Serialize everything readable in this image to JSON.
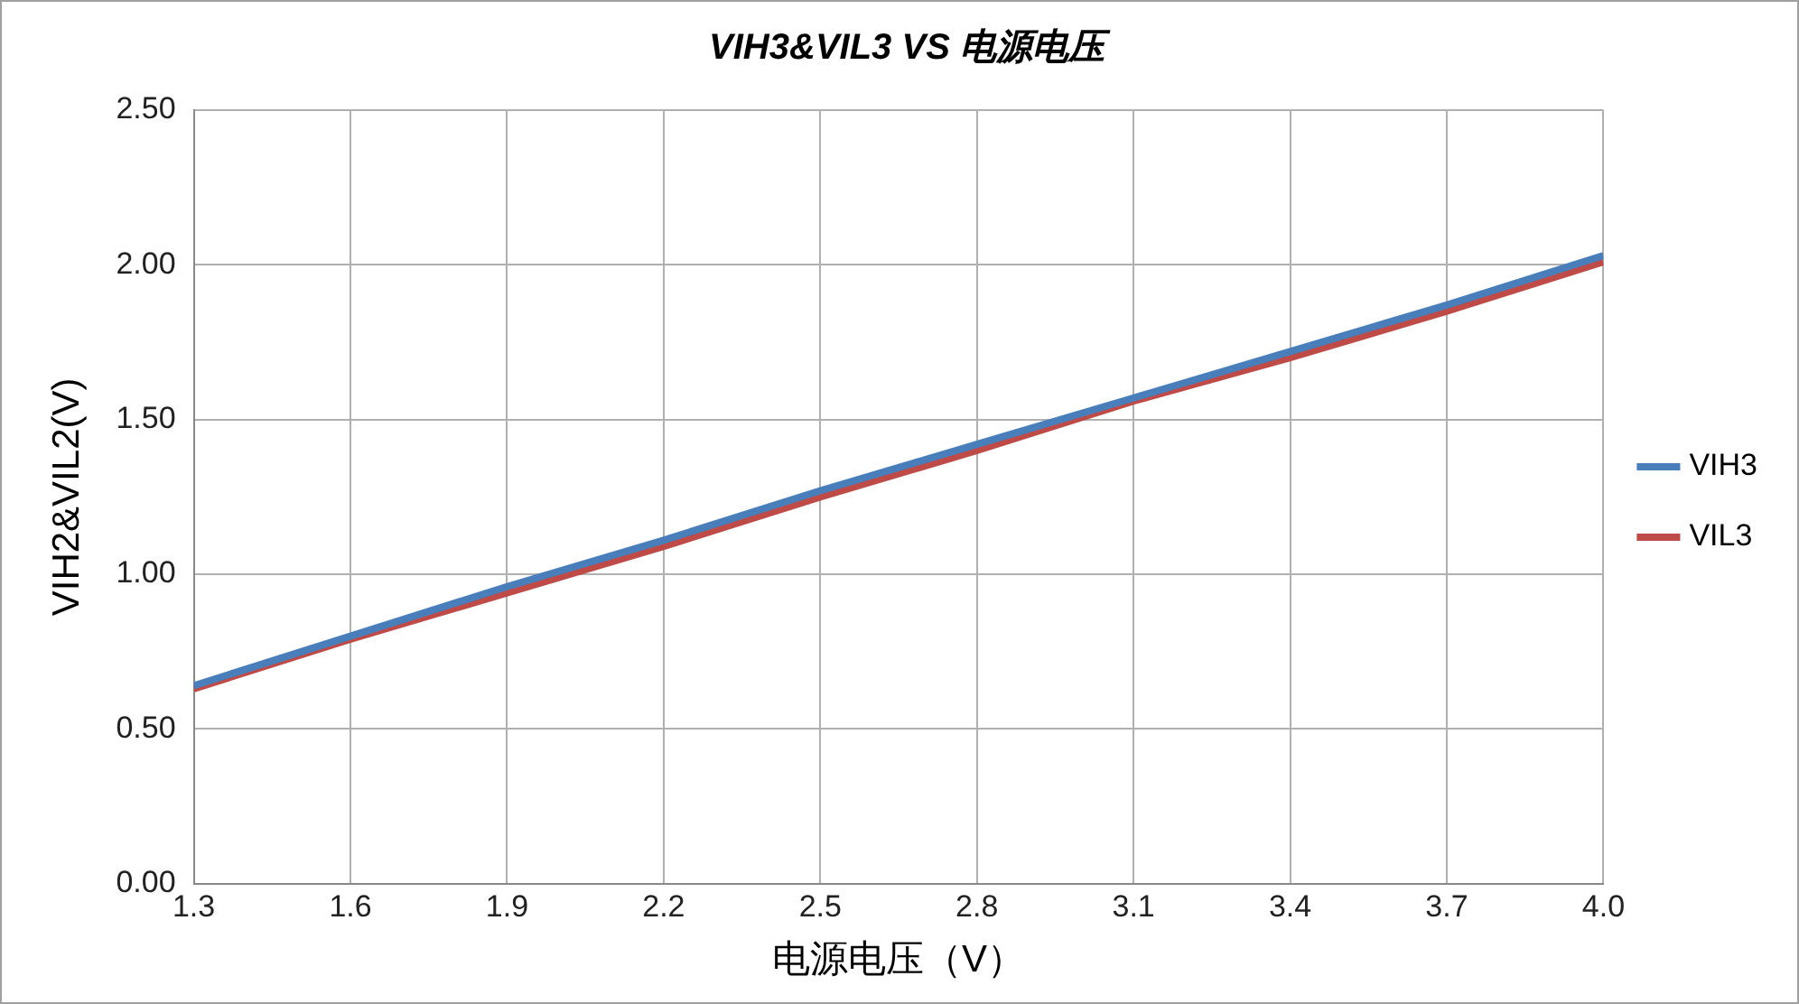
{
  "chart_data": {
    "type": "line",
    "title": "VIH3&VIL3 VS 电源电压",
    "xlabel": "电源电压（V）",
    "ylabel": "VIH2&VIL2(V)",
    "x": [
      1.3,
      1.6,
      1.9,
      2.2,
      2.5,
      2.8,
      3.1,
      3.4,
      3.7,
      4.0
    ],
    "series": [
      {
        "name": "VIH3",
        "color": "#4a7ebb",
        "values": [
          0.64,
          0.8,
          0.96,
          1.11,
          1.27,
          1.42,
          1.57,
          1.72,
          1.87,
          2.03
        ]
      },
      {
        "name": "VIL3",
        "color": "#be4b48",
        "values": [
          0.63,
          0.79,
          0.94,
          1.09,
          1.25,
          1.4,
          1.56,
          1.7,
          1.85,
          2.01
        ]
      }
    ],
    "xlim": [
      1.3,
      4.0
    ],
    "xticks": [
      1.3,
      1.6,
      1.9,
      2.2,
      2.5,
      2.8,
      3.1,
      3.4,
      3.7,
      {
        "value": 4,
        "label": "4.0"
      }
    ],
    "ylim": [
      0,
      2.5
    ],
    "yticks": [
      {
        "value": 0,
        "label": "0.00"
      },
      {
        "value": 0.5,
        "label": "0.50"
      },
      {
        "value": 1,
        "label": "1.00"
      },
      {
        "value": 1.5,
        "label": "1.50"
      },
      {
        "value": 2,
        "label": "2.00"
      },
      {
        "value": 2.5,
        "label": "2.50"
      }
    ],
    "grid": true,
    "legend": "right",
    "marker": "none",
    "line_style": "solid"
  }
}
